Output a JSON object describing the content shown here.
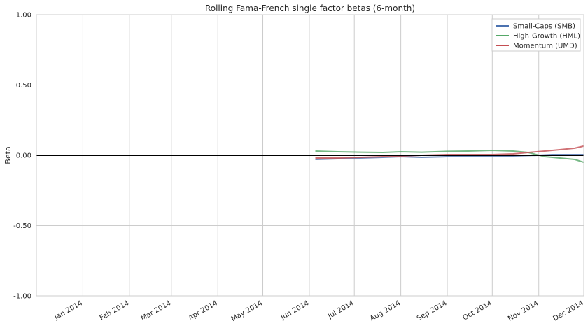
{
  "chart_data": {
    "type": "line",
    "title": "Rolling Fama-French single factor betas (6-month)",
    "xlabel": "",
    "ylabel": "Beta",
    "ylim": [
      -1.0,
      1.0
    ],
    "yticks": [
      -1.0,
      -0.5,
      0.0,
      0.5,
      1.0
    ],
    "ytick_labels": [
      "-1.00",
      "-0.50",
      "0.00",
      "0.50",
      "1.00"
    ],
    "xlim": [
      "2013-12-01",
      "2014-12-01"
    ],
    "xticks": [
      "2014-01-01",
      "2014-02-01",
      "2014-03-01",
      "2014-04-01",
      "2014-05-01",
      "2014-06-01",
      "2014-07-01",
      "2014-08-01",
      "2014-09-01",
      "2014-10-01",
      "2014-11-01",
      "2014-12-01"
    ],
    "xtick_labels": [
      "Jan 2014",
      "Feb 2014",
      "Mar 2014",
      "Apr 2014",
      "May 2014",
      "Jun 2014",
      "Jul 2014",
      "Aug 2014",
      "Sep 2014",
      "Oct 2014",
      "Nov 2014",
      "Dec 2014"
    ],
    "grid": true,
    "legend_position": "top-right",
    "reference_line": {
      "y": 0.0,
      "color": "#000000"
    },
    "series": [
      {
        "name": "Small-Caps (SMB)",
        "color": "#4c72b0",
        "points": [
          [
            "2014-06-05",
            -0.03
          ],
          [
            "2014-06-20",
            -0.025
          ],
          [
            "2014-07-05",
            -0.02
          ],
          [
            "2014-07-20",
            -0.015
          ],
          [
            "2014-08-01",
            -0.01
          ],
          [
            "2014-08-15",
            -0.015
          ],
          [
            "2014-09-01",
            -0.01
          ],
          [
            "2014-09-15",
            -0.005
          ],
          [
            "2014-10-01",
            -0.005
          ],
          [
            "2014-10-15",
            -0.005
          ],
          [
            "2014-11-01",
            0.0
          ],
          [
            "2014-11-10",
            0.005
          ],
          [
            "2014-11-20",
            0.005
          ],
          [
            "2014-12-01",
            0.005
          ]
        ]
      },
      {
        "name": "High-Growth (HML)",
        "color": "#55a868",
        "points": [
          [
            "2014-06-05",
            0.03
          ],
          [
            "2014-06-20",
            0.025
          ],
          [
            "2014-07-05",
            0.022
          ],
          [
            "2014-07-20",
            0.02
          ],
          [
            "2014-08-01",
            0.025
          ],
          [
            "2014-08-15",
            0.022
          ],
          [
            "2014-09-01",
            0.028
          ],
          [
            "2014-09-15",
            0.03
          ],
          [
            "2014-10-01",
            0.035
          ],
          [
            "2014-10-15",
            0.03
          ],
          [
            "2014-10-25",
            0.02
          ],
          [
            "2014-11-05",
            -0.01
          ],
          [
            "2014-11-15",
            -0.02
          ],
          [
            "2014-11-25",
            -0.03
          ],
          [
            "2014-12-01",
            -0.05
          ]
        ]
      },
      {
        "name": "Momentum (UMD)",
        "color": "#c44e52",
        "points": [
          [
            "2014-06-05",
            -0.02
          ],
          [
            "2014-06-20",
            -0.02
          ],
          [
            "2014-07-05",
            -0.015
          ],
          [
            "2014-07-20",
            -0.01
          ],
          [
            "2014-08-01",
            -0.005
          ],
          [
            "2014-08-15",
            0.0
          ],
          [
            "2014-09-01",
            0.005
          ],
          [
            "2014-09-15",
            0.005
          ],
          [
            "2014-10-01",
            0.005
          ],
          [
            "2014-10-15",
            0.01
          ],
          [
            "2014-10-25",
            0.02
          ],
          [
            "2014-11-05",
            0.03
          ],
          [
            "2014-11-15",
            0.04
          ],
          [
            "2014-11-25",
            0.05
          ],
          [
            "2014-12-01",
            0.065
          ]
        ]
      }
    ]
  }
}
